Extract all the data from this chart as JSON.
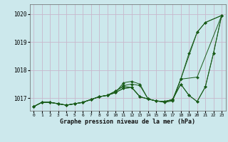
{
  "bg_color": "#cce8ec",
  "grid_color": "#c8b8cc",
  "line_color": "#1a5c1a",
  "xlabel": "Graphe pression niveau de la mer (hPa)",
  "xlim": [
    -0.5,
    23.5
  ],
  "ylim": [
    1016.55,
    1020.35
  ],
  "yticks": [
    1017,
    1018,
    1019,
    1020
  ],
  "xticks": [
    0,
    1,
    2,
    3,
    4,
    5,
    6,
    7,
    8,
    9,
    10,
    11,
    12,
    13,
    14,
    15,
    16,
    17,
    18,
    19,
    20,
    21,
    22,
    23
  ],
  "s1_x": [
    0,
    1,
    2,
    3,
    4,
    5,
    6,
    7,
    8,
    9,
    10,
    11,
    12,
    13,
    14,
    15,
    16,
    17,
    18,
    19,
    20,
    21,
    23
  ],
  "s1_y": [
    1016.7,
    1016.85,
    1016.85,
    1016.8,
    1016.75,
    1016.8,
    1016.85,
    1016.95,
    1017.05,
    1017.1,
    1017.2,
    1017.55,
    1017.6,
    1017.5,
    1016.97,
    1016.9,
    1016.85,
    1016.9,
    1017.68,
    1018.6,
    1019.35,
    1019.7,
    1019.95
  ],
  "s2_x": [
    0,
    1,
    2,
    3,
    4,
    5,
    6,
    7,
    8,
    9,
    10,
    11,
    12,
    13,
    14,
    15,
    16,
    17,
    18,
    20,
    21,
    23
  ],
  "s2_y": [
    1016.7,
    1016.85,
    1016.85,
    1016.8,
    1016.75,
    1016.8,
    1016.85,
    1016.95,
    1017.05,
    1017.1,
    1017.25,
    1017.45,
    1017.5,
    1017.45,
    1016.97,
    1016.9,
    1016.88,
    1016.92,
    1017.68,
    1019.35,
    1019.7,
    1019.95
  ],
  "s3_x": [
    0,
    1,
    2,
    3,
    4,
    5,
    6,
    7,
    8,
    9,
    10,
    11,
    12,
    13,
    14,
    15,
    16,
    17,
    18,
    20,
    23
  ],
  "s3_y": [
    1016.7,
    1016.85,
    1016.85,
    1016.8,
    1016.75,
    1016.8,
    1016.85,
    1016.95,
    1017.05,
    1017.1,
    1017.25,
    1017.42,
    1017.38,
    1017.05,
    1016.97,
    1016.9,
    1016.88,
    1016.95,
    1017.68,
    1017.75,
    1019.95
  ],
  "s4_x": [
    0,
    1,
    2,
    3,
    4,
    5,
    6,
    7,
    8,
    9,
    10,
    11,
    12,
    13,
    14,
    15,
    16,
    17,
    18,
    19,
    20,
    21,
    22,
    23
  ],
  "s4_y": [
    1016.7,
    1016.85,
    1016.85,
    1016.8,
    1016.75,
    1016.8,
    1016.85,
    1016.95,
    1017.05,
    1017.1,
    1017.2,
    1017.35,
    1017.38,
    1017.05,
    1016.97,
    1016.9,
    1016.88,
    1016.95,
    1017.5,
    1017.1,
    1016.88,
    1017.4,
    1018.6,
    1019.95
  ],
  "s5_x": [
    0,
    1,
    2,
    3,
    4,
    5,
    6,
    7,
    8,
    9,
    10,
    11,
    12,
    13,
    14,
    15,
    16,
    17,
    18,
    19,
    20,
    21,
    22,
    23
  ],
  "s5_y": [
    1016.7,
    1016.85,
    1016.85,
    1016.8,
    1016.75,
    1016.8,
    1016.85,
    1016.95,
    1017.05,
    1017.1,
    1017.2,
    1017.35,
    1017.38,
    1017.05,
    1016.97,
    1016.9,
    1016.88,
    1016.95,
    1017.5,
    1017.1,
    1016.88,
    1017.4,
    1018.6,
    1019.95
  ]
}
